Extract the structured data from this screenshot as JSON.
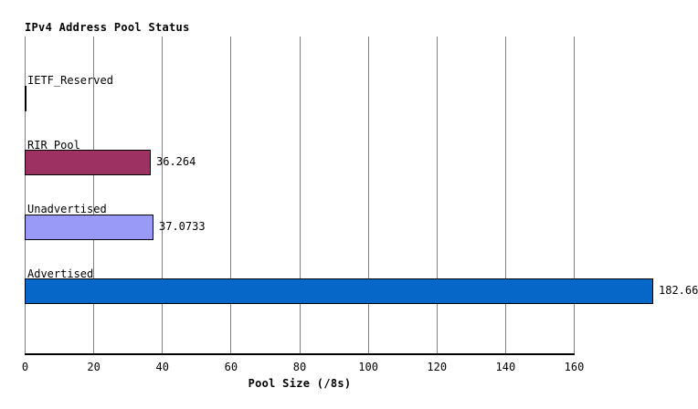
{
  "chart_data": {
    "type": "bar",
    "orientation": "horizontal",
    "title": "IPv4 Address Pool Status",
    "xlabel": "Pool Size (/8s)",
    "xlim": [
      0,
      160
    ],
    "xticks": [
      0,
      20,
      40,
      60,
      80,
      100,
      120,
      140,
      160
    ],
    "grid": true,
    "legend": false,
    "categories": [
      "IETF_Reserved",
      "RIR_Pool",
      "Unadvertised",
      "Advertised"
    ],
    "values": [
      0,
      36.264,
      37.0733,
      182.66
    ],
    "value_labels": [
      "",
      "36.264",
      "37.0733",
      "182.66"
    ],
    "bar_colors": [
      "#000000",
      "#9d3162",
      "#9999f8",
      "#0667c8"
    ],
    "bar_border_color": "#000000",
    "gridline_color": "#7f7f7f",
    "text_color": "#000000",
    "background_color": "#ffffff"
  }
}
